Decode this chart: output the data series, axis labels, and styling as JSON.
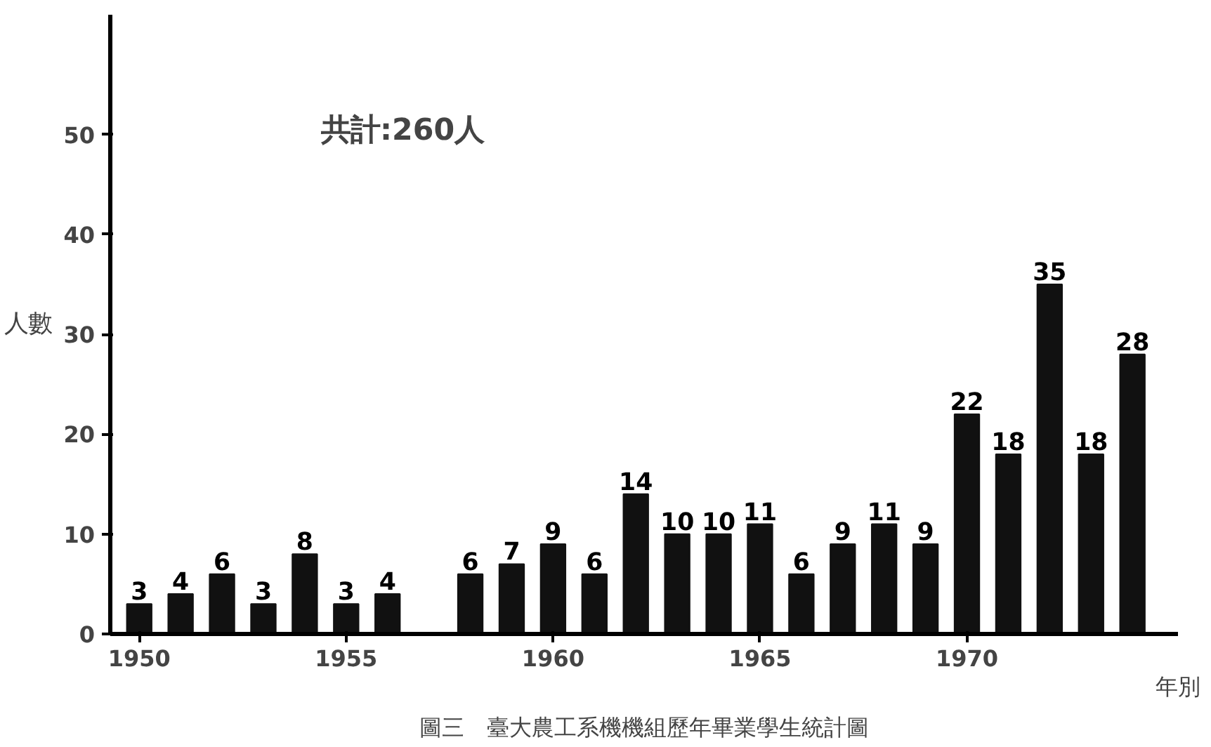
{
  "chart_data": {
    "type": "bar",
    "title": "圖三　臺大農工系機機組歷年畢業學生統計圖",
    "xlabel": "年別",
    "ylabel": "人數",
    "annotations": [
      "共計:260人"
    ],
    "x": [
      1950,
      1951,
      1952,
      1953,
      1954,
      1955,
      1956,
      1958,
      1959,
      1960,
      1961,
      1962,
      1963,
      1964,
      1965,
      1966,
      1967,
      1968,
      1969,
      1970,
      1971,
      1972,
      1973,
      1974
    ],
    "values": [
      3,
      4,
      6,
      3,
      8,
      3,
      4,
      6,
      7,
      9,
      6,
      14,
      10,
      10,
      11,
      6,
      9,
      11,
      9,
      22,
      18,
      35,
      18,
      28
    ],
    "color": "#111111",
    "data_labels": true,
    "grid": false,
    "xlim": [
      1949.3,
      1975.1
    ],
    "xticks": [
      1950,
      1955,
      1960,
      1965,
      1970
    ],
    "ylim": [
      0,
      62
    ],
    "yticks": [
      0,
      10,
      20,
      30,
      40,
      50
    ]
  }
}
